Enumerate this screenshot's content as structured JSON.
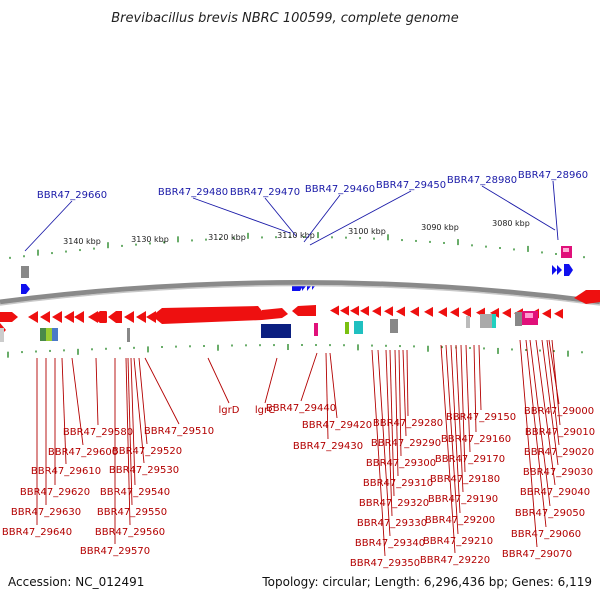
{
  "title": "Brevibacillus brevis NBRC 100599, complete genome",
  "footer": {
    "accession": "Accession: NC_012491",
    "summary": "Topology: circular; Length: 6,296,436 bp; Genes: 6,119"
  },
  "scale_labels": [
    "3140 kbp",
    "3130 kbp",
    "3120 kbp",
    "3110 kbp",
    "3100 kbp",
    "3090 kbp",
    "3080 kbp"
  ],
  "colors": {
    "forward_gene": "#1010ee",
    "reverse_gene": "#ee1010",
    "backbone": "#8a8a8a",
    "tick": "#2a8a2a",
    "label_blue": "#1a1aa8",
    "label_red": "#b30000"
  },
  "top_labels": [
    "BBR47_29660",
    "BBR47_29480",
    "BBR47_29470",
    "BBR47_29460",
    "BBR47_29450",
    "BBR47_28980",
    "BBR47_28960"
  ],
  "bottom_labels": [
    "BBR47_29580",
    "BBR47_29600",
    "BBR47_29610",
    "BBR47_29620",
    "BBR47_29630",
    "BBR47_29640",
    "BBR47_29510",
    "BBR47_29520",
    "BBR47_29530",
    "BBR47_29540",
    "BBR47_29550",
    "BBR47_29560",
    "BBR47_29570",
    "lgrD",
    "lgrC",
    "BBR47_29440",
    "BBR47_29420",
    "BBR47_29430",
    "BBR47_29280",
    "BBR47_29290",
    "BBR47_29300",
    "BBR47_29310",
    "BBR47_29320",
    "BBR47_29330",
    "BBR47_29340",
    "BBR47_29350",
    "BBR47_29150",
    "BBR47_29160",
    "BBR47_29170",
    "BBR47_29180",
    "BBR47_29190",
    "BBR47_29200",
    "BBR47_29210",
    "BBR47_29220",
    "BBR47_29000",
    "BBR47_29010",
    "BBR47_29020",
    "BBR47_29030",
    "BBR47_29040",
    "BBR47_29050",
    "BBR47_29060",
    "BBR47_29070"
  ]
}
